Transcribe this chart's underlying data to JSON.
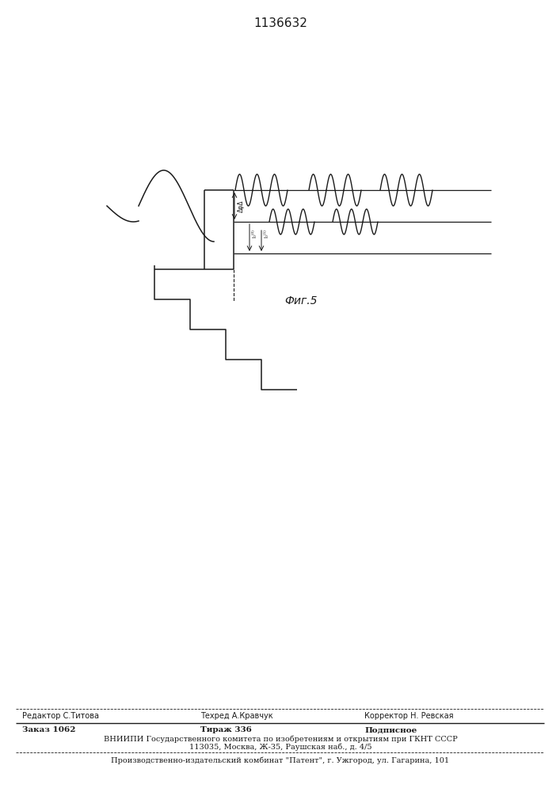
{
  "title": "1136632",
  "fig_label": "Фиг.5",
  "background_color": "#ffffff",
  "line_color": "#1a1a1a",
  "editor_line": "Редактор С.Титова",
  "techred_line": "Техред А.Кравчук",
  "corrector_line": "Корректор Н. Ревская",
  "order_line": "Заказ 1062",
  "tirage_line": "Тираж 336",
  "podp_line": "Подписное",
  "vnipi_line": "ВНИИПИ Государственного комитета по изобретениям и открытиям при ГКНТ СССР",
  "address_line": "113035, Москва, Ж-35, Раушская наб., д. 4/5",
  "proizvod_line": "Производственно-издательский комбинат \"Патент\", г. Ужгород, ул. Гагарина, 101"
}
